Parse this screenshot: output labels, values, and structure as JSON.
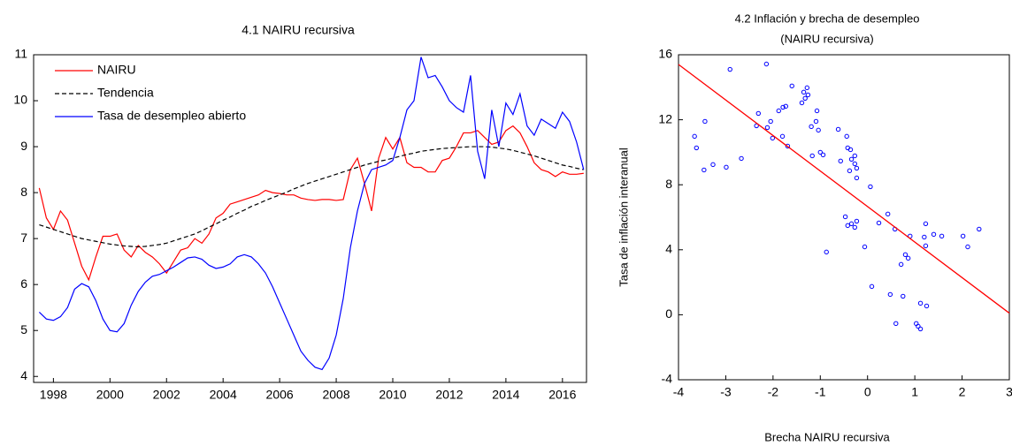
{
  "chart_data": [
    {
      "type": "line",
      "title": "4.1  NAIRU recursiva",
      "legend": "upper left",
      "x": [
        1997.5,
        1997.75,
        1998,
        1998.25,
        1998.5,
        1998.75,
        1999,
        1999.25,
        1999.5,
        1999.75,
        2000,
        2000.25,
        2000.5,
        2000.75,
        2001,
        2001.25,
        2001.5,
        2001.75,
        2002,
        2002.25,
        2002.5,
        2002.75,
        2003,
        2003.25,
        2003.5,
        2003.75,
        2004,
        2004.25,
        2004.5,
        2004.75,
        2005,
        2005.25,
        2005.5,
        2005.75,
        2006,
        2006.25,
        2006.5,
        2006.75,
        2007,
        2007.25,
        2007.5,
        2007.75,
        2008,
        2008.25,
        2008.5,
        2008.75,
        2009,
        2009.25,
        2009.5,
        2009.75,
        2010,
        2010.25,
        2010.5,
        2010.75,
        2011,
        2011.25,
        2011.5,
        2011.75,
        2012,
        2012.25,
        2012.5,
        2012.75,
        2013,
        2013.25,
        2013.5,
        2013.75,
        2014,
        2014.25,
        2014.5,
        2014.75,
        2015,
        2015.25,
        2015.5,
        2015.75,
        2016,
        2016.25,
        2016.5,
        2016.75
      ],
      "series": [
        {
          "name": "NAIRU",
          "color": "#ff0000",
          "dashed": false,
          "values": [
            8.1,
            7.45,
            7.2,
            7.6,
            7.4,
            6.9,
            6.4,
            6.1,
            6.6,
            7.05,
            7.05,
            7.1,
            6.75,
            6.6,
            6.85,
            6.7,
            6.6,
            6.45,
            6.25,
            6.5,
            6.75,
            6.8,
            7.0,
            6.9,
            7.1,
            7.45,
            7.55,
            7.75,
            7.8,
            7.85,
            7.9,
            7.95,
            8.05,
            8.0,
            7.98,
            7.95,
            7.95,
            7.88,
            7.85,
            7.83,
            7.85,
            7.85,
            7.83,
            7.85,
            8.5,
            8.75,
            8.2,
            7.6,
            8.75,
            9.2,
            8.95,
            9.2,
            8.65,
            8.55,
            8.55,
            8.45,
            8.45,
            8.7,
            8.75,
            9.0,
            9.3,
            9.3,
            9.35,
            9.2,
            9.05,
            9.1,
            9.35,
            9.45,
            9.3,
            9.0,
            8.65,
            8.5,
            8.45,
            8.35,
            8.45,
            8.4,
            8.4,
            8.42
          ]
        },
        {
          "name": "Tendencia",
          "color": "#000000",
          "dashed": true,
          "values": [
            7.3,
            7.25,
            7.2,
            7.15,
            7.1,
            7.05,
            7.0,
            6.97,
            6.94,
            6.91,
            6.88,
            6.86,
            6.84,
            6.83,
            6.82,
            6.83,
            6.85,
            6.87,
            6.9,
            6.95,
            7.0,
            7.05,
            7.1,
            7.17,
            7.25,
            7.32,
            7.4,
            7.47,
            7.55,
            7.62,
            7.7,
            7.76,
            7.83,
            7.89,
            7.95,
            8.01,
            8.08,
            8.14,
            8.2,
            8.25,
            8.3,
            8.35,
            8.4,
            8.45,
            8.5,
            8.55,
            8.6,
            8.64,
            8.68,
            8.71,
            8.75,
            8.79,
            8.83,
            8.86,
            8.9,
            8.92,
            8.94,
            8.96,
            8.97,
            8.98,
            8.99,
            9.0,
            9.0,
            9.0,
            8.99,
            8.97,
            8.95,
            8.92,
            8.88,
            8.84,
            8.8,
            8.75,
            8.7,
            8.65,
            8.6,
            8.57,
            8.53,
            8.5
          ]
        },
        {
          "name": "Tasa de desempleo abierto",
          "color": "#0000ff",
          "dashed": false,
          "values": [
            5.4,
            5.25,
            5.22,
            5.3,
            5.5,
            5.9,
            6.02,
            5.95,
            5.65,
            5.25,
            5.0,
            4.97,
            5.15,
            5.55,
            5.85,
            6.05,
            6.18,
            6.22,
            6.3,
            6.38,
            6.48,
            6.58,
            6.6,
            6.55,
            6.42,
            6.35,
            6.38,
            6.45,
            6.6,
            6.65,
            6.6,
            6.45,
            6.25,
            5.95,
            5.6,
            5.25,
            4.9,
            4.55,
            4.35,
            4.2,
            4.15,
            4.4,
            4.9,
            5.7,
            6.8,
            7.6,
            8.2,
            8.5,
            8.55,
            8.6,
            8.7,
            9.2,
            9.8,
            10.0,
            10.95,
            10.5,
            10.55,
            10.3,
            10.0,
            9.85,
            9.75,
            10.55,
            8.9,
            8.3,
            9.8,
            9.0,
            9.95,
            9.7,
            10.15,
            9.45,
            9.25,
            9.6,
            9.5,
            9.4,
            9.75,
            9.55,
            9.1,
            8.5
          ]
        }
      ],
      "xlim": [
        1997.3,
        2016.85
      ],
      "xticks": [
        1998,
        2000,
        2002,
        2004,
        2006,
        2008,
        2010,
        2012,
        2014,
        2016
      ],
      "ylim": [
        3.87,
        11
      ],
      "yticks": [
        4,
        5,
        6,
        7,
        8,
        9,
        10,
        11
      ]
    },
    {
      "type": "scatter",
      "title": "4.2 Inflación y brecha de desempleo",
      "subtitle": "(NAIRU recursiva)",
      "xlabel": "Brecha NAIRU recursiva",
      "ylabel": "Tasa de inflación interanual",
      "color": "#0000ff",
      "x": [
        -3.66,
        -3.62,
        -3.44,
        -3.46,
        -3.27,
        -2.91,
        -2.99,
        -2.67,
        -2.14,
        -2.31,
        -2.35,
        -2.12,
        -2.05,
        -2.01,
        -1.88,
        -1.79,
        -1.73,
        -1.8,
        -1.69,
        -1.6,
        -1.39,
        -1.35,
        -1.32,
        -1.28,
        -1.26,
        -1.19,
        -1.09,
        -1.17,
        -1.07,
        -1.04,
        -1.0,
        -0.94,
        -0.87,
        -0.62,
        -0.57,
        -0.44,
        -0.42,
        -0.36,
        -0.34,
        -0.27,
        -0.27,
        -0.23,
        -0.38,
        -0.23,
        -0.47,
        -0.42,
        -0.34,
        -0.27,
        -0.23,
        -0.06,
        0.06,
        0.09,
        0.24,
        0.43,
        0.48,
        0.58,
        0.6,
        0.71,
        0.75,
        0.8,
        0.86,
        0.9,
        1.03,
        1.07,
        1.12,
        1.12,
        1.2,
        1.23,
        1.23,
        1.25,
        1.4,
        1.57,
        2.02,
        2.12,
        2.36
      ],
      "values": [
        10.98,
        10.27,
        11.9,
        8.91,
        9.24,
        15.1,
        9.08,
        9.62,
        15.43,
        12.39,
        11.63,
        11.52,
        11.9,
        10.87,
        12.55,
        12.77,
        12.83,
        10.98,
        10.38,
        14.08,
        13.04,
        13.7,
        13.32,
        13.97,
        13.53,
        11.58,
        11.9,
        9.78,
        12.55,
        11.36,
        10.0,
        9.84,
        3.86,
        11.41,
        9.46,
        10.98,
        10.27,
        10.16,
        9.57,
        9.78,
        9.29,
        9.02,
        8.86,
        8.42,
        6.03,
        5.49,
        5.6,
        5.38,
        5.76,
        4.18,
        7.88,
        1.74,
        5.65,
        6.2,
        1.25,
        5.27,
        -0.54,
        3.1,
        1.14,
        3.7,
        3.48,
        4.84,
        -0.54,
        -0.71,
        -0.87,
        0.71,
        4.78,
        5.6,
        4.24,
        0.54,
        4.95,
        4.84,
        4.84,
        4.18,
        5.27
      ],
      "fit_line": {
        "x": [
          -4,
          3
        ],
        "values": [
          15.4,
          0.1
        ],
        "color": "#ff0000"
      },
      "xlim": [
        -4,
        3
      ],
      "xticks": [
        -4,
        -3,
        -2,
        -1,
        0,
        1,
        2,
        3
      ],
      "ylim": [
        -4,
        16
      ],
      "yticks": [
        -4,
        0,
        4,
        8,
        12,
        16
      ]
    }
  ]
}
